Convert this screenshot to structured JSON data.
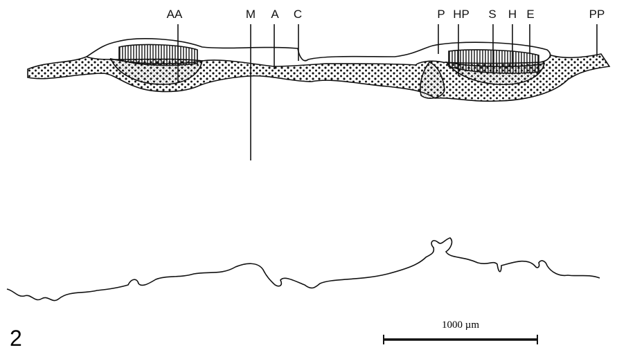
{
  "labels": [
    "AA",
    "M",
    "A",
    "C",
    "P",
    "HP",
    "S",
    "H",
    "E",
    "PP"
  ],
  "figure_number": "2",
  "scale_bar": {
    "label": "1000 µm"
  }
}
